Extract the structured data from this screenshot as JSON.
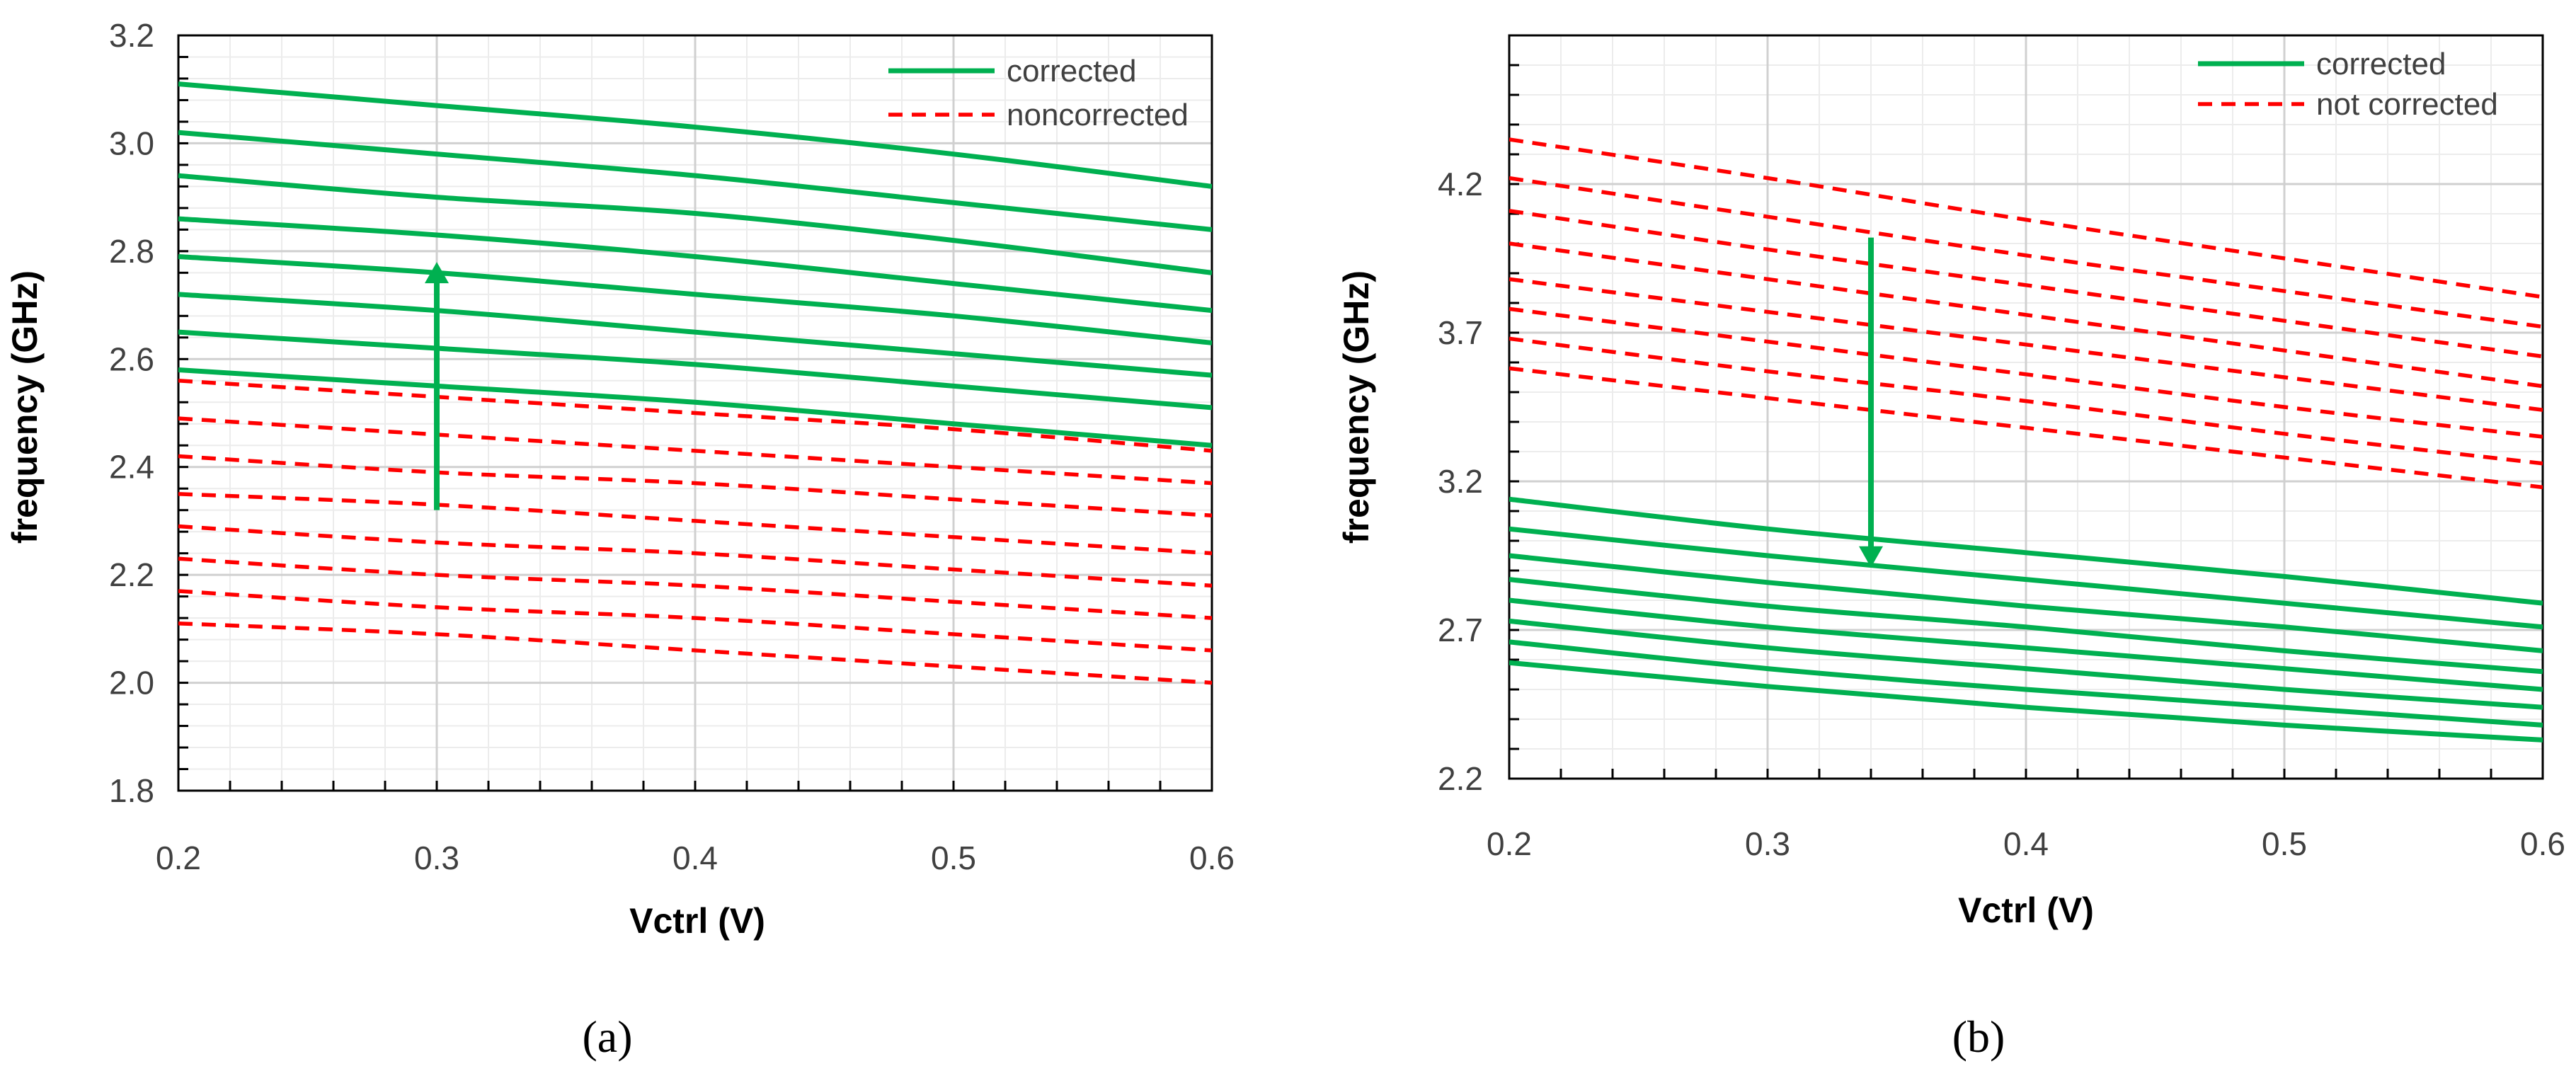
{
  "chart_data": [
    {
      "type": "line",
      "panel": "a",
      "caption": "(a)",
      "title": "",
      "xlabel": "Vctrl (V)",
      "ylabel": "frequency (GHz)",
      "xlim": [
        0.2,
        0.6
      ],
      "ylim": [
        1.8,
        3.2
      ],
      "x_ticks": [
        "0.2",
        "0.3",
        "0.4",
        "0.5",
        "0.6"
      ],
      "y_ticks": [
        "1.8",
        "2.0",
        "2.2",
        "2.4",
        "2.6",
        "2.8",
        "3.0",
        "3.2"
      ],
      "grid": true,
      "legend": {
        "position": "top-right",
        "entries": [
          {
            "label": "corrected",
            "color": "#00b050",
            "style": "solid"
          },
          {
            "label": "noncorrected",
            "color": "#ff0000",
            "style": "dashed"
          }
        ]
      },
      "annotation": {
        "type": "arrow",
        "direction": "up",
        "x": 0.3,
        "from": 2.32,
        "to": 2.78,
        "color": "#00b050"
      },
      "x": [
        0.2,
        0.3,
        0.4,
        0.5,
        0.6
      ],
      "series": [
        {
          "name": "corrected",
          "group": "corrected",
          "values": [
            3.11,
            3.07,
            3.03,
            2.98,
            2.92
          ]
        },
        {
          "name": "corrected",
          "group": "corrected",
          "values": [
            3.02,
            2.98,
            2.94,
            2.89,
            2.84
          ]
        },
        {
          "name": "corrected",
          "group": "corrected",
          "values": [
            2.94,
            2.9,
            2.87,
            2.82,
            2.76
          ]
        },
        {
          "name": "corrected",
          "group": "corrected",
          "values": [
            2.86,
            2.83,
            2.79,
            2.74,
            2.69
          ]
        },
        {
          "name": "corrected",
          "group": "corrected",
          "values": [
            2.79,
            2.76,
            2.72,
            2.68,
            2.63
          ]
        },
        {
          "name": "corrected",
          "group": "corrected",
          "values": [
            2.72,
            2.69,
            2.65,
            2.61,
            2.57
          ]
        },
        {
          "name": "corrected",
          "group": "corrected",
          "values": [
            2.65,
            2.62,
            2.59,
            2.55,
            2.51
          ]
        },
        {
          "name": "corrected",
          "group": "corrected",
          "values": [
            2.58,
            2.55,
            2.52,
            2.48,
            2.44
          ]
        },
        {
          "name": "noncorrected",
          "group": "noncorrected",
          "values": [
            2.56,
            2.53,
            2.5,
            2.47,
            2.43
          ]
        },
        {
          "name": "noncorrected",
          "group": "noncorrected",
          "values": [
            2.49,
            2.46,
            2.43,
            2.4,
            2.37
          ]
        },
        {
          "name": "noncorrected",
          "group": "noncorrected",
          "values": [
            2.42,
            2.39,
            2.37,
            2.34,
            2.31
          ]
        },
        {
          "name": "noncorrected",
          "group": "noncorrected",
          "values": [
            2.35,
            2.33,
            2.3,
            2.27,
            2.24
          ]
        },
        {
          "name": "noncorrected",
          "group": "noncorrected",
          "values": [
            2.29,
            2.26,
            2.24,
            2.21,
            2.18
          ]
        },
        {
          "name": "noncorrected",
          "group": "noncorrected",
          "values": [
            2.23,
            2.2,
            2.18,
            2.15,
            2.12
          ]
        },
        {
          "name": "noncorrected",
          "group": "noncorrected",
          "values": [
            2.17,
            2.14,
            2.12,
            2.09,
            2.06
          ]
        },
        {
          "name": "noncorrected",
          "group": "noncorrected",
          "values": [
            2.11,
            2.09,
            2.06,
            2.03,
            2.0
          ]
        }
      ]
    },
    {
      "type": "line",
      "panel": "b",
      "caption": "(b)",
      "title": "",
      "xlabel": "Vctrl (V)",
      "ylabel": "frequency (GHz)",
      "xlim": [
        0.2,
        0.6
      ],
      "ylim": [
        2.2,
        4.7
      ],
      "x_ticks": [
        "0.2",
        "0.3",
        "0.4",
        "0.5",
        "0.6"
      ],
      "y_ticks": [
        "2.2",
        "2.7",
        "3.2",
        "3.7",
        "4.2"
      ],
      "grid": true,
      "legend": {
        "position": "top-right",
        "entries": [
          {
            "label": "corrected",
            "color": "#00b050",
            "style": "solid"
          },
          {
            "label": "not corrected",
            "color": "#ff0000",
            "style": "dashed"
          }
        ]
      },
      "annotation": {
        "type": "arrow",
        "direction": "down",
        "x": 0.34,
        "from": 4.02,
        "to": 2.91,
        "color": "#00b050"
      },
      "x": [
        0.2,
        0.3,
        0.4,
        0.5,
        0.6
      ],
      "series": [
        {
          "name": "not corrected",
          "group": "noncorrected",
          "values": [
            4.35,
            4.22,
            4.08,
            3.95,
            3.82
          ]
        },
        {
          "name": "not corrected",
          "group": "noncorrected",
          "values": [
            4.22,
            4.09,
            3.96,
            3.84,
            3.72
          ]
        },
        {
          "name": "not corrected",
          "group": "noncorrected",
          "values": [
            4.11,
            3.98,
            3.86,
            3.74,
            3.62
          ]
        },
        {
          "name": "not corrected",
          "group": "noncorrected",
          "values": [
            4.0,
            3.88,
            3.76,
            3.64,
            3.52
          ]
        },
        {
          "name": "not corrected",
          "group": "noncorrected",
          "values": [
            3.88,
            3.77,
            3.66,
            3.55,
            3.44
          ]
        },
        {
          "name": "not corrected",
          "group": "noncorrected",
          "values": [
            3.78,
            3.67,
            3.56,
            3.45,
            3.35
          ]
        },
        {
          "name": "not corrected",
          "group": "noncorrected",
          "values": [
            3.68,
            3.57,
            3.47,
            3.36,
            3.26
          ]
        },
        {
          "name": "not corrected",
          "group": "noncorrected",
          "values": [
            3.58,
            3.48,
            3.38,
            3.28,
            3.18
          ]
        },
        {
          "name": "corrected",
          "group": "corrected",
          "values": [
            3.14,
            3.04,
            2.96,
            2.88,
            2.79
          ]
        },
        {
          "name": "corrected",
          "group": "corrected",
          "values": [
            3.04,
            2.95,
            2.87,
            2.79,
            2.71
          ]
        },
        {
          "name": "corrected",
          "group": "corrected",
          "values": [
            2.95,
            2.86,
            2.78,
            2.71,
            2.63
          ]
        },
        {
          "name": "corrected",
          "group": "corrected",
          "values": [
            2.87,
            2.78,
            2.71,
            2.63,
            2.56
          ]
        },
        {
          "name": "corrected",
          "group": "corrected",
          "values": [
            2.8,
            2.71,
            2.64,
            2.57,
            2.5
          ]
        },
        {
          "name": "corrected",
          "group": "corrected",
          "values": [
            2.73,
            2.64,
            2.57,
            2.5,
            2.44
          ]
        },
        {
          "name": "corrected",
          "group": "corrected",
          "values": [
            2.66,
            2.57,
            2.5,
            2.44,
            2.38
          ]
        },
        {
          "name": "corrected",
          "group": "corrected",
          "values": [
            2.59,
            2.51,
            2.44,
            2.38,
            2.33
          ]
        }
      ]
    }
  ],
  "colors": {
    "corrected": "#00b050",
    "noncorrected": "#ff0000",
    "grid_major": "#d0d0d0",
    "grid_minor": "#ececec",
    "axis": "#000000"
  }
}
